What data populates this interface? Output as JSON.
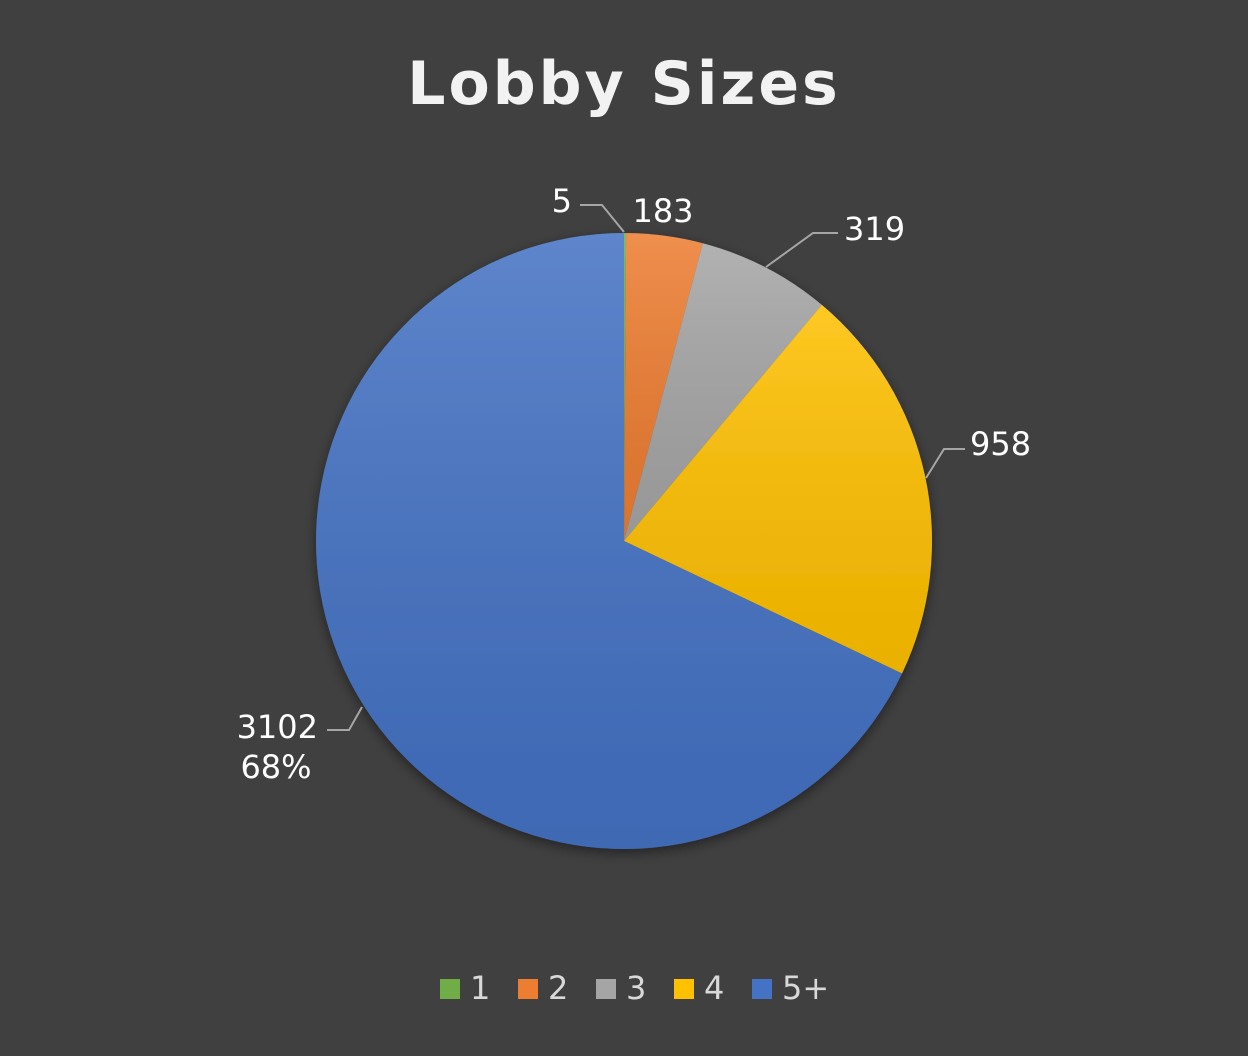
{
  "chart_data": {
    "type": "pie",
    "title": "Lobby Sizes",
    "categories": [
      "1",
      "2",
      "3",
      "4",
      "5+"
    ],
    "values": [
      5,
      183,
      319,
      958,
      3102
    ],
    "colors": [
      "#70ad47",
      "#ed7d31",
      "#a5a5a5",
      "#ffc000",
      "#4472c4"
    ],
    "data_labels": [
      "5",
      "183",
      "319",
      "958",
      "3102"
    ],
    "percent_labels": [
      "",
      "",
      "",
      "",
      "68%"
    ],
    "legend_position": "bottom",
    "start_angle_deg": 0,
    "direction": "clockwise"
  }
}
